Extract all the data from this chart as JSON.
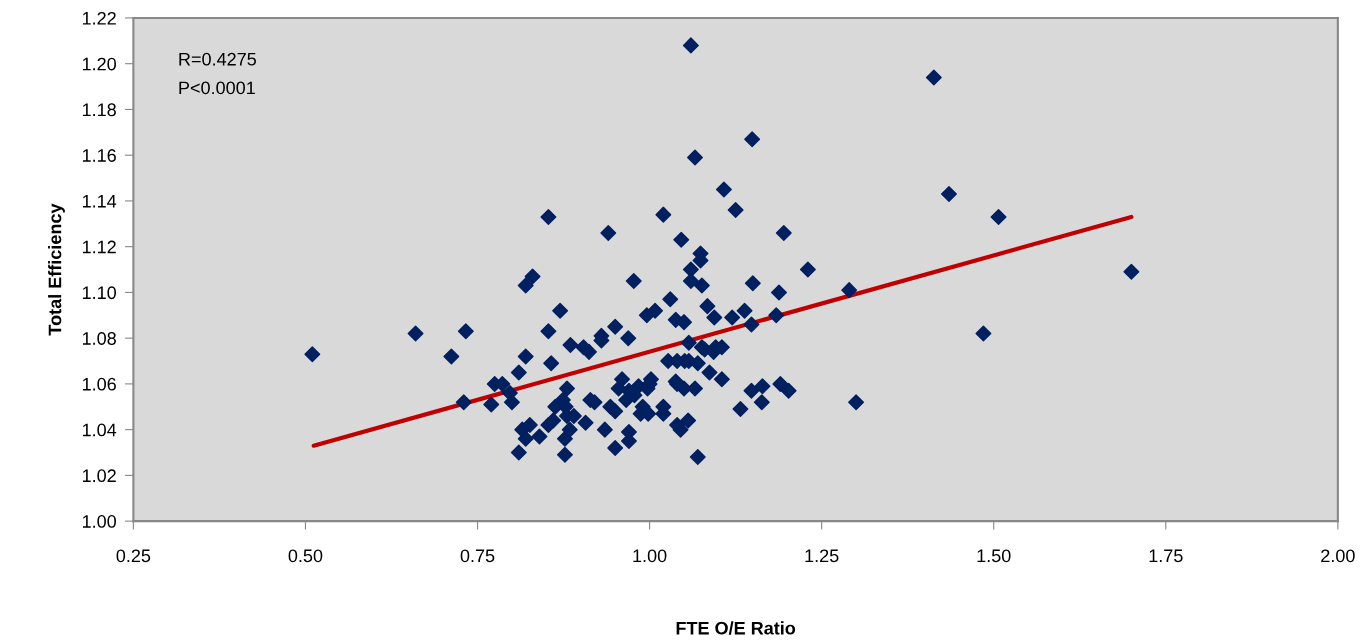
{
  "chart_data": {
    "type": "scatter",
    "xlabel": "FTE O/E Ratio",
    "ylabel": "Total Efficiency",
    "annotations": [
      "R=0.4275",
      "P<0.0001"
    ],
    "xlim": [
      0.25,
      2.0
    ],
    "xticks": [
      {
        "value": 0.25,
        "label": "0.25"
      },
      {
        "value": 0.5,
        "label": "0.50"
      },
      {
        "value": 0.75,
        "label": "0.75"
      },
      {
        "value": 1.0,
        "label": "1.00"
      },
      {
        "value": 1.25,
        "label": "1.25"
      },
      {
        "value": 1.5,
        "label": "1.50"
      },
      {
        "value": 1.75,
        "label": "1.75"
      },
      {
        "value": 2.0,
        "label": "2.00"
      }
    ],
    "ylim": [
      1.0,
      1.22
    ],
    "yticks": [
      {
        "value": 1.0,
        "label": "1.00"
      },
      {
        "value": 1.02,
        "label": "1.02"
      },
      {
        "value": 1.04,
        "label": "1.04"
      },
      {
        "value": 1.06,
        "label": "1.06"
      },
      {
        "value": 1.08,
        "label": "1.08"
      },
      {
        "value": 1.1,
        "label": "1.10"
      },
      {
        "value": 1.12,
        "label": "1.12"
      },
      {
        "value": 1.14,
        "label": "1.14"
      },
      {
        "value": 1.16,
        "label": "1.16"
      },
      {
        "value": 1.18,
        "label": "1.18"
      },
      {
        "value": 1.2,
        "label": "1.20"
      },
      {
        "value": 1.22,
        "label": "1.22"
      }
    ],
    "grid": false,
    "legend": false,
    "marker": "diamond",
    "series": [
      {
        "color": "#002060",
        "x": [
          0.51,
          0.66,
          0.712,
          0.733,
          0.73,
          0.77,
          0.775,
          0.786,
          0.797,
          0.8,
          0.81,
          0.82,
          0.82,
          0.83,
          0.81,
          0.815,
          0.82,
          0.826,
          0.84,
          0.853,
          0.853,
          0.857,
          0.853,
          0.86,
          0.863,
          0.87,
          0.874,
          0.88,
          0.878,
          0.88,
          0.877,
          0.877,
          0.884,
          0.885,
          0.89,
          0.904,
          0.912,
          0.914,
          0.907,
          0.92,
          0.93,
          0.93,
          0.94,
          0.935,
          0.943,
          0.95,
          0.95,
          0.95,
          0.955,
          0.96,
          0.966,
          0.969,
          0.97,
          0.97,
          0.97,
          0.977,
          0.978,
          0.984,
          0.987,
          0.99,
          0.997,
          0.996,
          1.0,
          1.002,
          1.008,
          0.998,
          1.02,
          1.02,
          1.02,
          1.027,
          1.03,
          1.038,
          1.038,
          1.04,
          1.04,
          1.04,
          1.045,
          1.046,
          1.05,
          1.05,
          1.051,
          1.056,
          1.057,
          1.06,
          1.057,
          1.06,
          1.06,
          1.066,
          1.066,
          1.07,
          1.074,
          1.074,
          1.076,
          1.07,
          1.076,
          1.08,
          1.084,
          1.087,
          1.093,
          1.094,
          1.096,
          1.105,
          1.105,
          1.108,
          1.12,
          1.125,
          1.132,
          1.138,
          1.148,
          1.148,
          1.15,
          1.149,
          1.163,
          1.164,
          1.188,
          1.184,
          1.19,
          1.195,
          1.202,
          1.23,
          1.29,
          1.3,
          1.413,
          1.435,
          1.485,
          1.507,
          1.7
        ],
        "values": [
          1.073,
          1.082,
          1.072,
          1.083,
          1.052,
          1.051,
          1.06,
          1.06,
          1.056,
          1.052,
          1.065,
          1.072,
          1.103,
          1.107,
          1.03,
          1.04,
          1.036,
          1.042,
          1.037,
          1.133,
          1.083,
          1.069,
          1.042,
          1.044,
          1.05,
          1.092,
          1.053,
          1.058,
          1.05,
          1.046,
          1.036,
          1.029,
          1.04,
          1.077,
          1.046,
          1.076,
          1.074,
          1.053,
          1.043,
          1.052,
          1.081,
          1.079,
          1.126,
          1.04,
          1.05,
          1.048,
          1.085,
          1.032,
          1.058,
          1.062,
          1.053,
          1.08,
          1.057,
          1.035,
          1.039,
          1.105,
          1.055,
          1.059,
          1.047,
          1.05,
          1.058,
          1.09,
          1.06,
          1.062,
          1.092,
          1.047,
          1.134,
          1.047,
          1.05,
          1.07,
          1.097,
          1.088,
          1.061,
          1.07,
          1.042,
          1.06,
          1.04,
          1.123,
          1.058,
          1.087,
          1.07,
          1.044,
          1.078,
          1.208,
          1.07,
          1.11,
          1.105,
          1.159,
          1.058,
          1.069,
          1.117,
          1.114,
          1.103,
          1.028,
          1.076,
          1.075,
          1.094,
          1.065,
          1.074,
          1.089,
          1.076,
          1.076,
          1.062,
          1.145,
          1.089,
          1.136,
          1.049,
          1.092,
          1.086,
          1.057,
          1.104,
          1.167,
          1.052,
          1.059,
          1.1,
          1.09,
          1.06,
          1.126,
          1.057,
          1.11,
          1.101,
          1.052,
          1.194,
          1.143,
          1.082,
          1.133,
          1.109
        ]
      },
      {
        "type": "line",
        "color": "#c00000",
        "marker": "none",
        "line_style": "solid",
        "x": [
          0.512,
          1.7
        ],
        "values": [
          1.033,
          1.133
        ]
      }
    ]
  }
}
